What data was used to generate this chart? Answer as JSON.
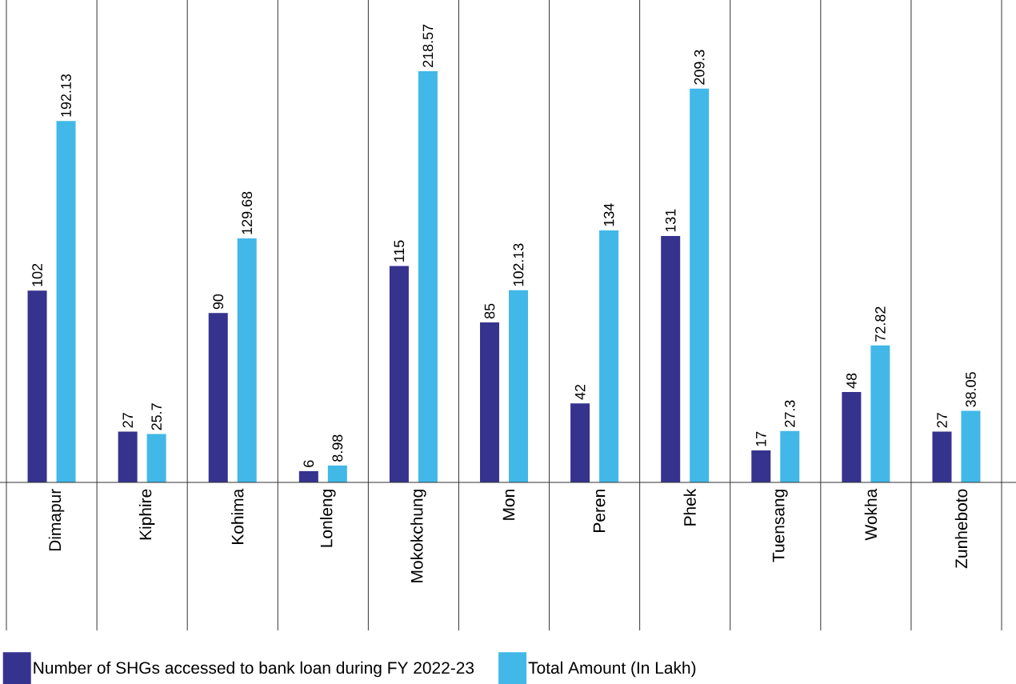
{
  "chart_data": {
    "type": "bar",
    "categories": [
      "Dimapur",
      "Kiphire",
      "Kohima",
      "Lonleng",
      "Mokokchung",
      "Mon",
      "Peren",
      "Phek",
      "Tuensang",
      "Wokha",
      "Zunheboto"
    ],
    "series": [
      {
        "name": "Number of SHGs accessed to bank loan during FY 2022-23",
        "color": "#36338e",
        "values": [
          102,
          27,
          90,
          6,
          115,
          85,
          42,
          131,
          17,
          48,
          27
        ]
      },
      {
        "name": "Total Amount (In Lakh)",
        "color": "#42b8e8",
        "values": [
          192.13,
          25.7,
          129.68,
          8.98,
          218.57,
          102.13,
          134,
          209.3,
          27.3,
          72.82,
          38.05
        ]
      }
    ],
    "data_labels": true,
    "grid": "x",
    "legend": "bottom"
  }
}
